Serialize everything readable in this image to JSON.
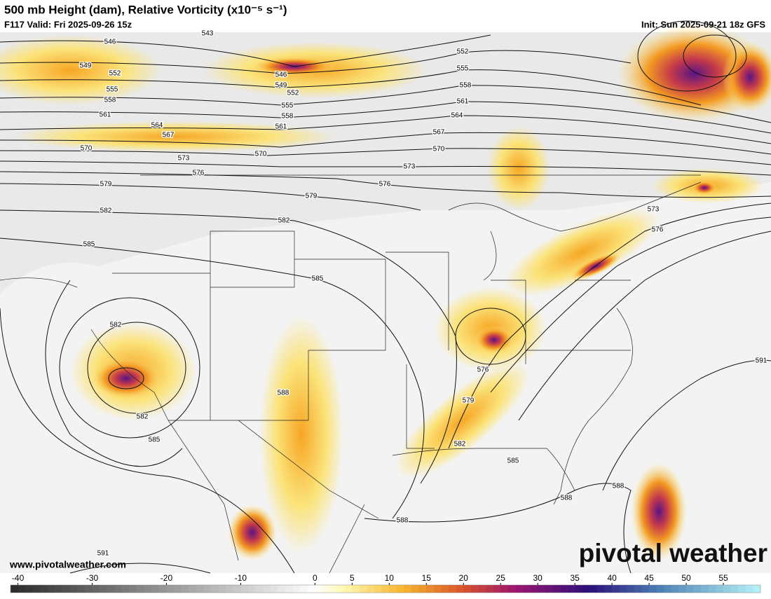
{
  "header": {
    "title": "500 mb Height (dam), Relative Vorticity (x10⁻⁵ s⁻¹)",
    "valid": "F117 Valid: Fri 2025-09-26 15z",
    "init": "Init: Sun 2025-09-21 18z GFS"
  },
  "map": {
    "height_labels": [
      543,
      546,
      549,
      552,
      555,
      558,
      561,
      564,
      567,
      570,
      573,
      576,
      579,
      582,
      585,
      582,
      582,
      585,
      591,
      546,
      549,
      552,
      555,
      558,
      561,
      570,
      582,
      579,
      576,
      573,
      570,
      567,
      564,
      561,
      558,
      555,
      552,
      585,
      588,
      588,
      582,
      579,
      576,
      585,
      588,
      588,
      573,
      576,
      591
    ]
  },
  "colorbar": {
    "lim": [
      -41,
      60
    ],
    "ticks": [
      -40,
      -30,
      -20,
      -10,
      0,
      5,
      10,
      15,
      20,
      25,
      30,
      35,
      40,
      45,
      50,
      55
    ],
    "colors": [
      [
        -41,
        "#2a2a2a"
      ],
      [
        0,
        "#ffffff"
      ],
      [
        4,
        "#fff8b0"
      ],
      [
        12,
        "#f7b52c"
      ],
      [
        20,
        "#d9522b"
      ],
      [
        27,
        "#9c1670"
      ],
      [
        37,
        "#2a0f7a"
      ],
      [
        47,
        "#4f86b8"
      ],
      [
        60,
        "#b7f4f7"
      ]
    ]
  },
  "footer": {
    "website": "www.pivotalweather.com",
    "watermark": "pivotal weather"
  }
}
